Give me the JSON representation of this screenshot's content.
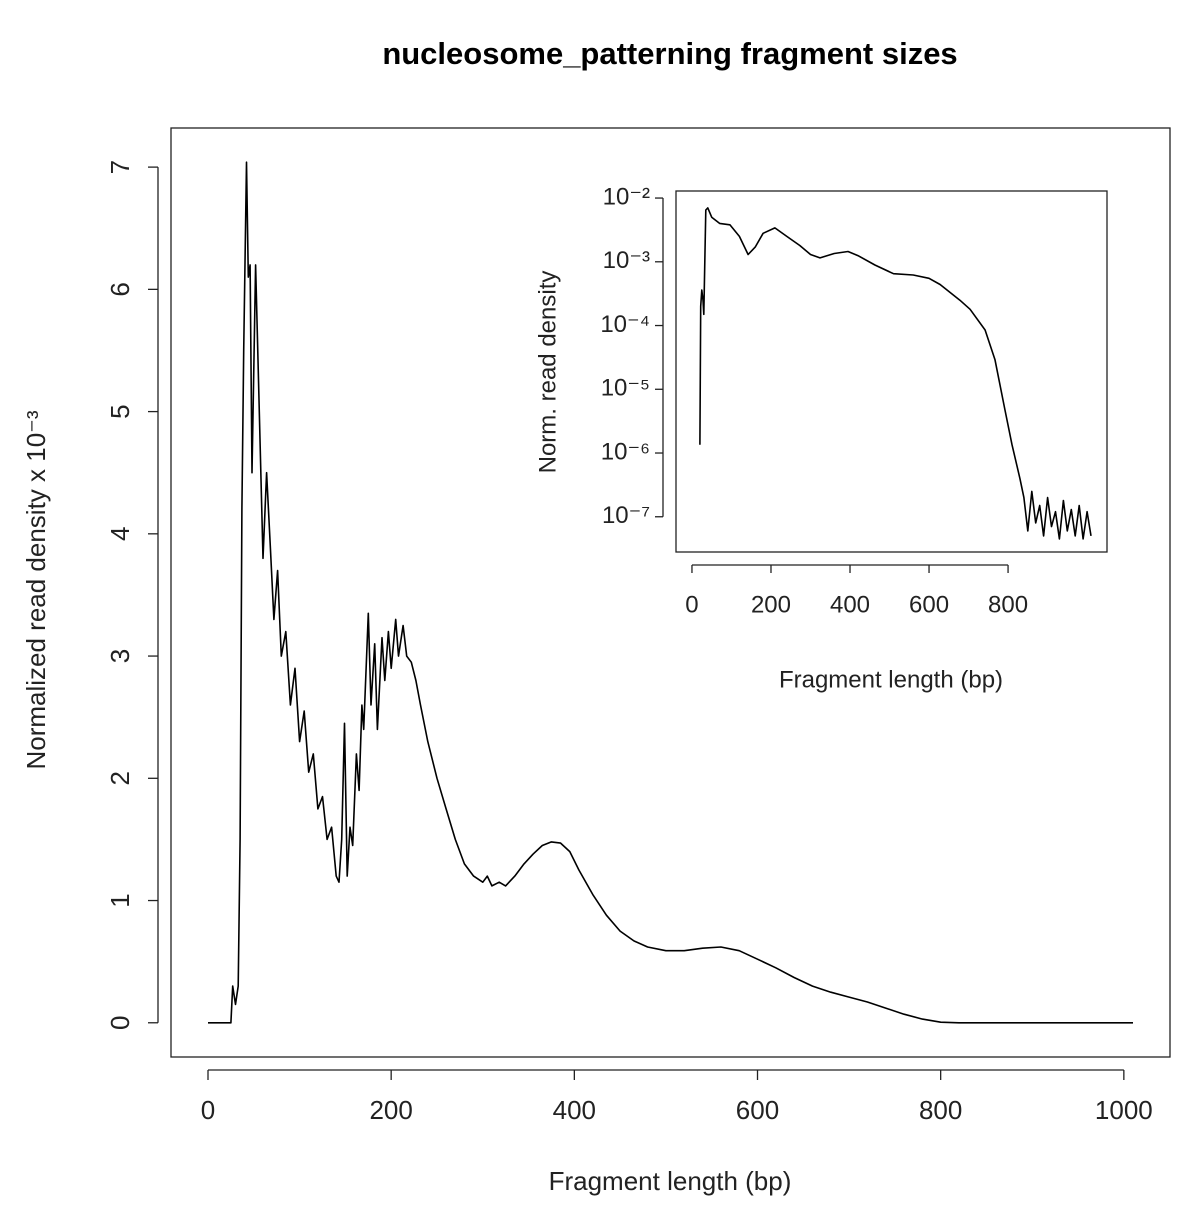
{
  "chart_data": [
    {
      "type": "line",
      "title": "nucleosome_patterning fragment sizes",
      "x_label": "Fragment length (bp)",
      "y_label": "Normalized read density x 10⁻³",
      "color": "#000000",
      "x": [
        0,
        25,
        27,
        30,
        33,
        35,
        37,
        39,
        42,
        44,
        46,
        48,
        52,
        56,
        60,
        64,
        68,
        72,
        76,
        80,
        85,
        90,
        95,
        100,
        105,
        110,
        115,
        120,
        125,
        130,
        135,
        140,
        143,
        146,
        149,
        152,
        155,
        158,
        162,
        165,
        168,
        170,
        175,
        178,
        182,
        185,
        190,
        193,
        197,
        200,
        205,
        208,
        213,
        217,
        222,
        227,
        232,
        240,
        250,
        260,
        270,
        280,
        290,
        300,
        305,
        310,
        318,
        325,
        335,
        345,
        355,
        365,
        375,
        385,
        395,
        405,
        420,
        435,
        450,
        465,
        480,
        500,
        520,
        540,
        560,
        580,
        600,
        620,
        640,
        660,
        680,
        700,
        720,
        740,
        760,
        780,
        800,
        820,
        1010
      ],
      "values": [
        0,
        0,
        0.3,
        0.15,
        0.3,
        1.5,
        4.2,
        5.5,
        7.04,
        6.1,
        6.2,
        4.5,
        6.2,
        5.0,
        3.8,
        4.5,
        3.9,
        3.3,
        3.7,
        3.0,
        3.2,
        2.6,
        2.9,
        2.3,
        2.55,
        2.05,
        2.2,
        1.75,
        1.85,
        1.5,
        1.6,
        1.2,
        1.15,
        1.5,
        2.45,
        1.2,
        1.6,
        1.45,
        2.2,
        1.9,
        2.6,
        2.4,
        3.35,
        2.6,
        3.1,
        2.4,
        3.15,
        2.8,
        3.2,
        2.9,
        3.3,
        3.0,
        3.25,
        3.0,
        2.95,
        2.8,
        2.6,
        2.3,
        2.0,
        1.75,
        1.5,
        1.3,
        1.2,
        1.15,
        1.2,
        1.12,
        1.15,
        1.12,
        1.2,
        1.3,
        1.38,
        1.45,
        1.48,
        1.47,
        1.4,
        1.25,
        1.05,
        0.88,
        0.75,
        0.67,
        0.62,
        0.59,
        0.59,
        0.61,
        0.62,
        0.59,
        0.52,
        0.45,
        0.37,
        0.3,
        0.25,
        0.21,
        0.17,
        0.12,
        0.07,
        0.03,
        0.005,
        0,
        0
      ],
      "xlim": [
        -40.4,
        1050.4
      ],
      "xticks": [
        0,
        200,
        400,
        600,
        800,
        1000
      ],
      "ylim": [
        -0.28,
        7.32
      ],
      "yticks": [
        0,
        1,
        2,
        3,
        4,
        5,
        6,
        7
      ]
    },
    {
      "type": "line",
      "x_label": "Fragment length (bp)",
      "y_label": "Norm. read density",
      "color": "#000000",
      "ylog": true,
      "x": [
        20,
        22,
        25,
        28,
        30,
        35,
        40,
        50,
        70,
        96,
        120,
        142,
        160,
        180,
        210,
        240,
        273,
        300,
        324,
        360,
        395,
        420,
        463,
        510,
        560,
        600,
        628,
        678,
        704,
        742,
        767,
        792,
        810,
        830,
        840,
        850,
        860,
        870,
        880,
        890,
        900,
        910,
        920,
        930,
        940,
        950,
        960,
        970,
        980,
        990,
        1000,
        1010
      ],
      "values": [
        1.35e-06,
        0.0002,
        0.00036,
        0.00025,
        0.00015,
        0.0065,
        0.007,
        0.005,
        0.004,
        0.0038,
        0.0025,
        0.0013,
        0.0017,
        0.0028,
        0.0034,
        0.0025,
        0.0018,
        0.0013,
        0.00115,
        0.00135,
        0.00145,
        0.00125,
        0.00089,
        0.00065,
        0.00062,
        0.00055,
        0.00044,
        0.00025,
        0.00018,
        8.5e-05,
        2.9e-05,
        4.8e-06,
        1.35e-06,
        4e-07,
        2e-07,
        6e-08,
        2.5e-07,
        8e-08,
        1.5e-07,
        5e-08,
        2e-07,
        7e-08,
        1.2e-07,
        4.5e-08,
        1.8e-07,
        6e-08,
        1.3e-07,
        5e-08,
        1.5e-07,
        4.5e-08,
        1.2e-07,
        5e-08
      ],
      "xlim": [
        -40.4,
        1050.4
      ],
      "xticks": [
        0,
        200,
        400,
        600,
        800
      ],
      "ylim": [
        2.8e-08,
        0.0129
      ],
      "yticks": [
        {
          "value": 0.01,
          "label": "10⁻²"
        },
        {
          "value": 0.001,
          "label": "10⁻³"
        },
        {
          "value": 0.0001,
          "label": "10⁻⁴"
        },
        {
          "value": 1e-05,
          "label": "10⁻⁵"
        },
        {
          "value": 1e-06,
          "label": "10⁻⁶"
        },
        {
          "value": 1e-07,
          "label": "10⁻⁷"
        }
      ]
    }
  ]
}
